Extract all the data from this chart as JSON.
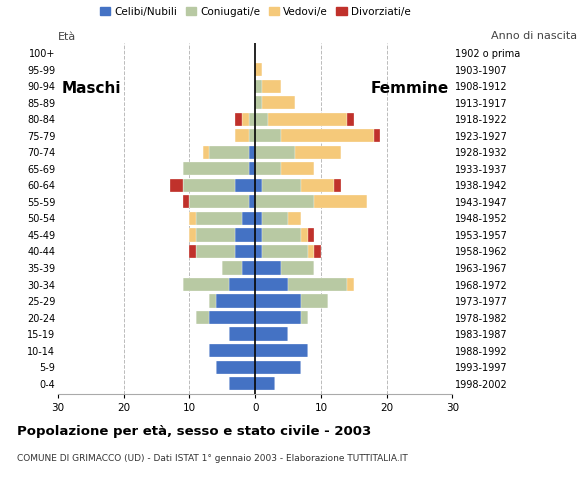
{
  "age_groups": [
    "0-4",
    "5-9",
    "10-14",
    "15-19",
    "20-24",
    "25-29",
    "30-34",
    "35-39",
    "40-44",
    "45-49",
    "50-54",
    "55-59",
    "60-64",
    "65-69",
    "70-74",
    "75-79",
    "80-84",
    "85-89",
    "90-94",
    "95-99",
    "100+"
  ],
  "birth_years": [
    "1998-2002",
    "1993-1997",
    "1988-1992",
    "1983-1987",
    "1978-1982",
    "1973-1977",
    "1968-1972",
    "1963-1967",
    "1958-1962",
    "1953-1957",
    "1948-1952",
    "1943-1947",
    "1938-1942",
    "1933-1937",
    "1928-1932",
    "1923-1927",
    "1918-1922",
    "1913-1917",
    "1908-1912",
    "1903-1907",
    "1902 o prima"
  ],
  "males": {
    "celibi": [
      4,
      6,
      7,
      4,
      7,
      6,
      4,
      2,
      3,
      3,
      2,
      1,
      3,
      1,
      1,
      0,
      0,
      0,
      0,
      0,
      0
    ],
    "coniugati": [
      0,
      0,
      0,
      0,
      2,
      1,
      7,
      3,
      6,
      6,
      7,
      9,
      8,
      10,
      6,
      1,
      1,
      0,
      0,
      0,
      0
    ],
    "vedovi": [
      0,
      0,
      0,
      0,
      0,
      0,
      0,
      0,
      0,
      1,
      1,
      0,
      0,
      0,
      1,
      2,
      1,
      0,
      0,
      0,
      0
    ],
    "divorziati": [
      0,
      0,
      0,
      0,
      0,
      0,
      0,
      0,
      1,
      0,
      0,
      1,
      2,
      0,
      0,
      0,
      1,
      0,
      0,
      0,
      0
    ]
  },
  "females": {
    "nubili": [
      3,
      7,
      8,
      5,
      7,
      7,
      5,
      4,
      1,
      1,
      1,
      0,
      1,
      0,
      0,
      0,
      0,
      0,
      0,
      0,
      0
    ],
    "coniugate": [
      0,
      0,
      0,
      0,
      1,
      4,
      9,
      5,
      7,
      6,
      4,
      9,
      6,
      4,
      6,
      4,
      2,
      1,
      1,
      0,
      0
    ],
    "vedove": [
      0,
      0,
      0,
      0,
      0,
      0,
      1,
      0,
      1,
      1,
      2,
      8,
      5,
      5,
      7,
      14,
      12,
      5,
      3,
      1,
      0
    ],
    "divorziate": [
      0,
      0,
      0,
      0,
      0,
      0,
      0,
      0,
      1,
      1,
      0,
      0,
      1,
      0,
      0,
      1,
      1,
      0,
      0,
      0,
      0
    ]
  },
  "colors": {
    "celibi": "#4472c4",
    "coniugati": "#b8c9a3",
    "vedovi": "#f5c97a",
    "divorziati": "#c0312b"
  },
  "title": "Popolazione per età, sesso e stato civile - 2003",
  "subtitle": "COMUNE DI GRIMACCO (UD) - Dati ISTAT 1° gennaio 2003 - Elaborazione TUTTITALIA.IT",
  "xlabel_left": "Maschi",
  "xlabel_right": "Femmine",
  "ylabel_left": "Età",
  "ylabel_right": "Anno di nascita",
  "xlim": 30,
  "legend_labels": [
    "Celibi/Nubili",
    "Coniugati/e",
    "Vedovi/e",
    "Divorziati/e"
  ],
  "background_color": "#ffffff",
  "grid_color": "#bbbbbb"
}
